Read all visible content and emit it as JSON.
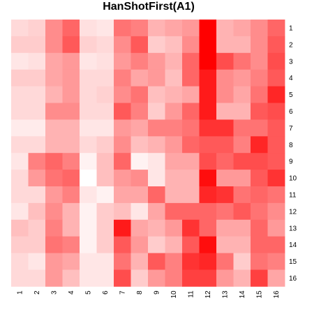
{
  "chart_data": {
    "type": "heatmap",
    "title": "HanShotFirst(A1)",
    "x_labels": [
      "1",
      "2",
      "3",
      "4",
      "5",
      "6",
      "7",
      "8",
      "9",
      "10",
      "11",
      "12",
      "13",
      "14",
      "15",
      "16"
    ],
    "y_labels": [
      "1",
      "2",
      "3",
      "4",
      "5",
      "6",
      "7",
      "8",
      "9",
      "10",
      "11",
      "12",
      "13",
      "14",
      "15",
      "16"
    ],
    "value_range": [
      0,
      1
    ],
    "color_low": "#ffffff",
    "color_high": "#ff0000",
    "legend": "none",
    "grid": false,
    "values": [
      [
        0.15,
        0.18,
        0.45,
        0.6,
        0.12,
        0.1,
        0.55,
        0.5,
        0.3,
        0.35,
        0.4,
        1.0,
        0.3,
        0.35,
        0.45,
        0.6
      ],
      [
        0.2,
        0.2,
        0.45,
        0.65,
        0.18,
        0.15,
        0.45,
        0.65,
        0.2,
        0.25,
        0.45,
        1.0,
        0.3,
        0.3,
        0.45,
        0.65
      ],
      [
        0.1,
        0.12,
        0.35,
        0.4,
        0.1,
        0.12,
        0.4,
        0.5,
        0.4,
        0.3,
        0.6,
        1.0,
        0.7,
        0.55,
        0.45,
        0.7
      ],
      [
        0.2,
        0.2,
        0.35,
        0.4,
        0.15,
        0.15,
        0.5,
        0.35,
        0.4,
        0.25,
        0.6,
        0.9,
        0.45,
        0.4,
        0.5,
        0.65
      ],
      [
        0.15,
        0.15,
        0.3,
        0.4,
        0.15,
        0.18,
        0.45,
        0.55,
        0.25,
        0.3,
        0.35,
        0.9,
        0.45,
        0.35,
        0.55,
        0.85
      ],
      [
        0.15,
        0.15,
        0.45,
        0.45,
        0.15,
        0.15,
        0.65,
        0.5,
        0.2,
        0.4,
        0.6,
        0.9,
        0.3,
        0.3,
        0.65,
        0.7
      ],
      [
        0.08,
        0.08,
        0.3,
        0.3,
        0.1,
        0.1,
        0.4,
        0.35,
        0.5,
        0.5,
        0.55,
        0.8,
        0.8,
        0.55,
        0.55,
        0.65
      ],
      [
        0.15,
        0.15,
        0.3,
        0.3,
        0.15,
        0.2,
        0.45,
        0.25,
        0.3,
        0.4,
        0.6,
        0.65,
        0.65,
        0.5,
        0.85,
        0.65
      ],
      [
        0.1,
        0.5,
        0.6,
        0.5,
        0.05,
        0.25,
        0.6,
        0.05,
        0.1,
        0.35,
        0.35,
        0.7,
        0.6,
        0.7,
        0.7,
        0.65
      ],
      [
        0.15,
        0.4,
        0.55,
        0.6,
        0.0,
        0.25,
        0.4,
        0.45,
        0.1,
        0.3,
        0.3,
        0.95,
        0.4,
        0.4,
        0.65,
        0.8
      ],
      [
        0.15,
        0.15,
        0.4,
        0.5,
        0.1,
        0.05,
        0.35,
        0.35,
        0.6,
        0.3,
        0.3,
        0.85,
        0.8,
        0.55,
        0.6,
        0.55
      ],
      [
        0.1,
        0.25,
        0.45,
        0.3,
        0.05,
        0.2,
        0.25,
        0.1,
        0.35,
        0.6,
        0.6,
        0.6,
        0.55,
        0.65,
        0.55,
        0.45
      ],
      [
        0.25,
        0.2,
        0.5,
        0.3,
        0.05,
        0.2,
        0.9,
        0.35,
        0.3,
        0.4,
        0.8,
        0.6,
        0.35,
        0.35,
        0.6,
        0.4
      ],
      [
        0.2,
        0.2,
        0.55,
        0.5,
        0.05,
        0.2,
        0.65,
        0.4,
        0.2,
        0.3,
        0.65,
        0.95,
        0.3,
        0.3,
        0.6,
        0.6
      ],
      [
        0.15,
        0.1,
        0.4,
        0.35,
        0.1,
        0.1,
        0.55,
        0.3,
        0.65,
        0.5,
        0.8,
        0.85,
        0.55,
        0.2,
        0.55,
        0.5
      ],
      [
        0.15,
        0.15,
        0.4,
        0.25,
        0.1,
        0.1,
        0.7,
        0.2,
        0.4,
        0.5,
        0.75,
        0.75,
        0.4,
        0.3,
        0.75,
        0.35
      ]
    ]
  }
}
